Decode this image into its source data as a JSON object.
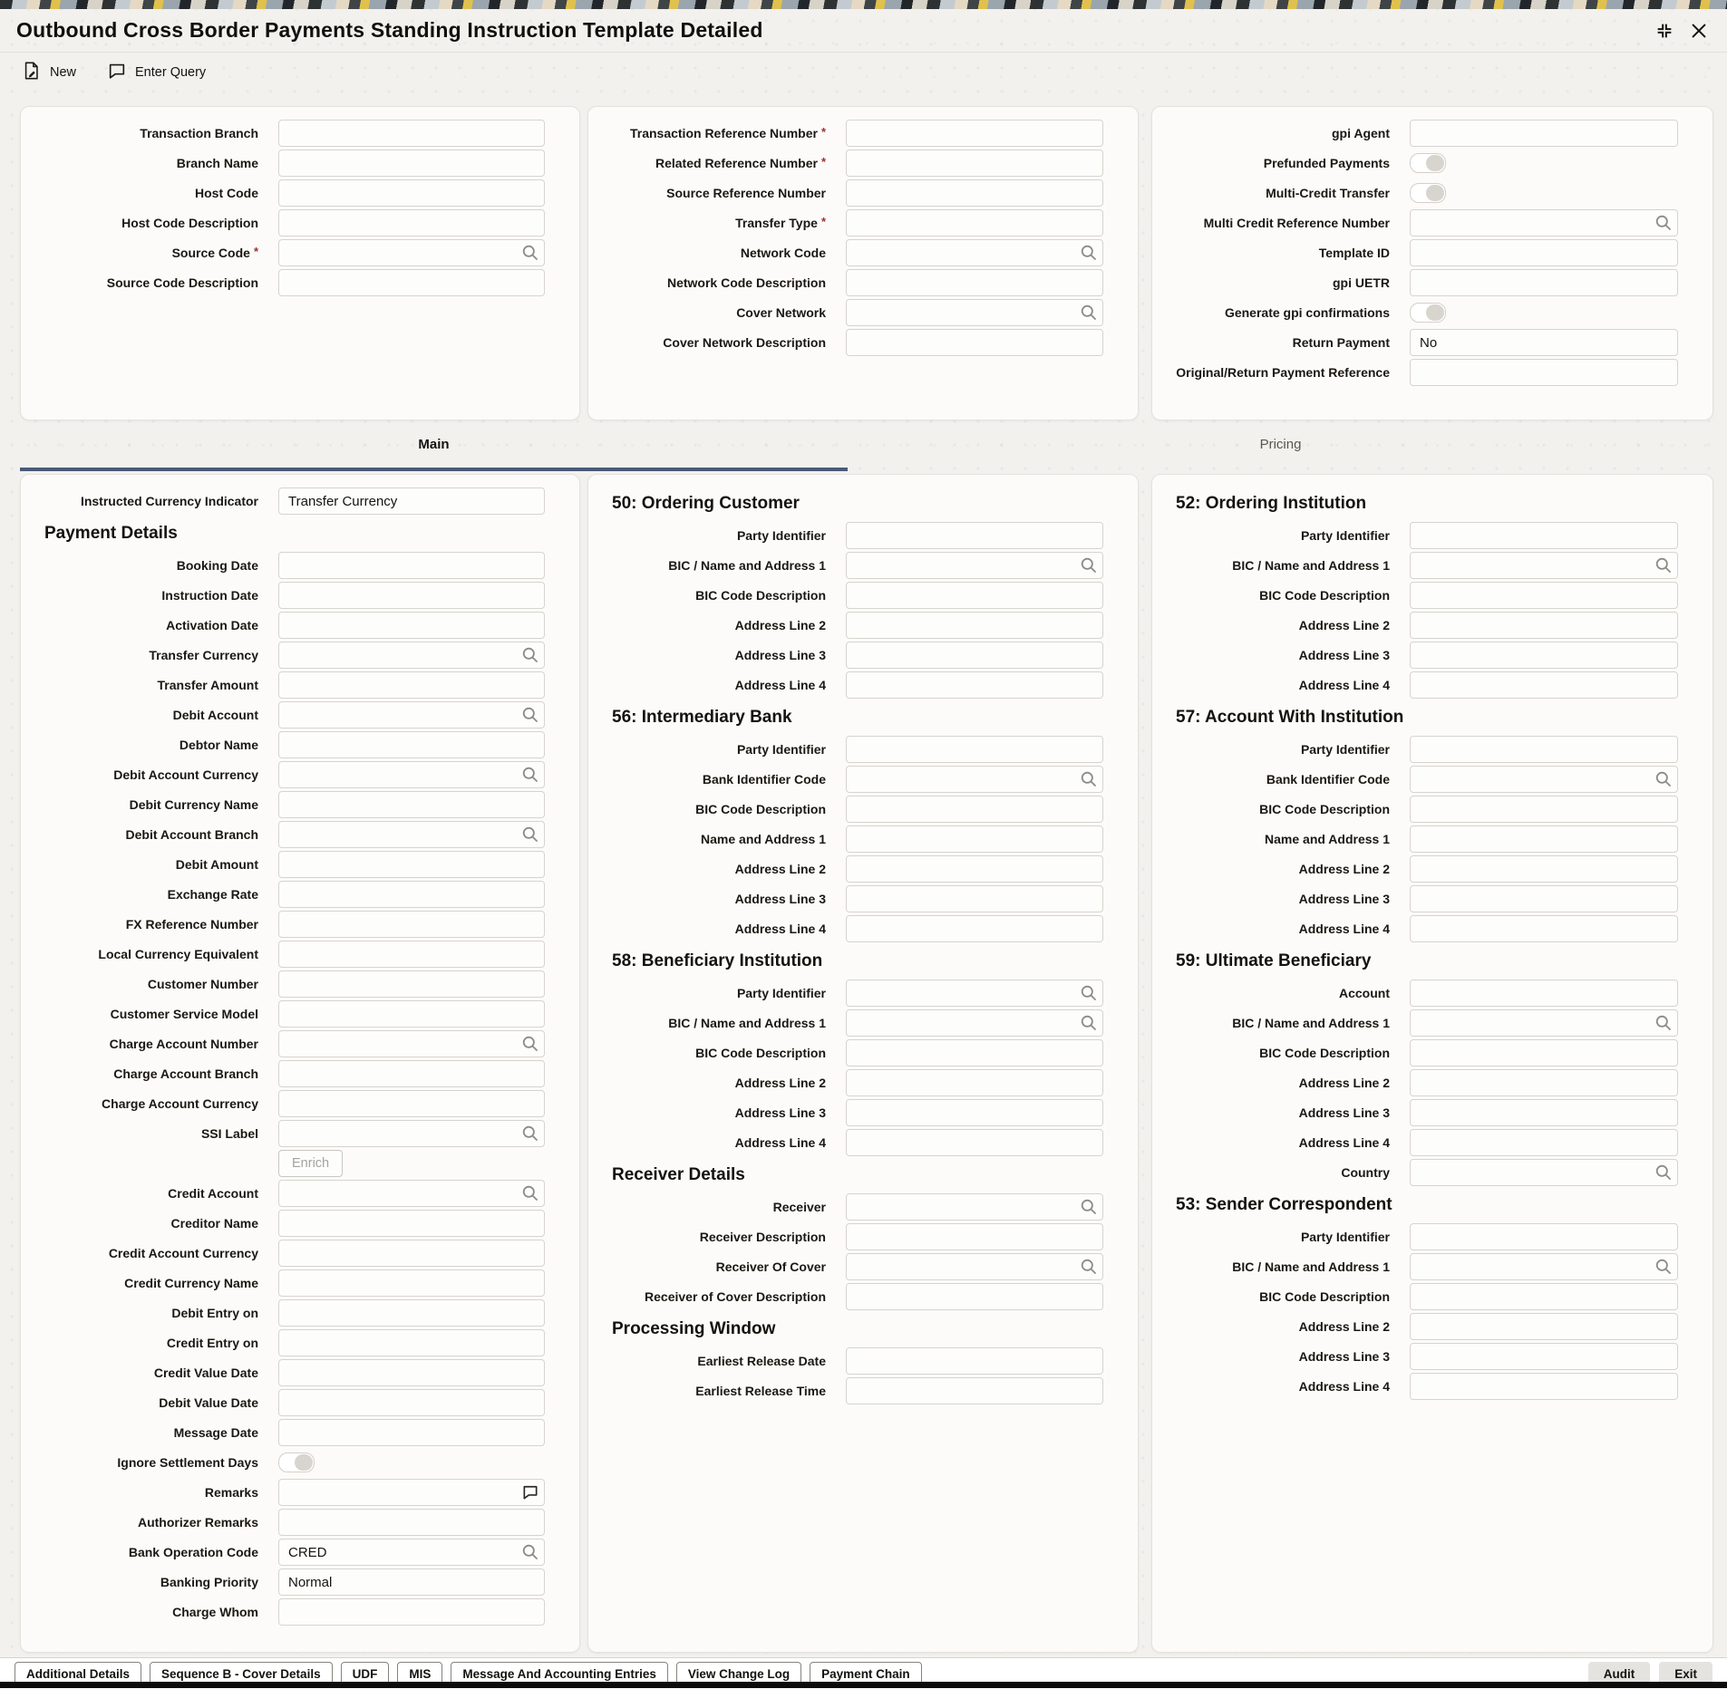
{
  "window": {
    "title": "Outbound Cross Border Payments Standing Instruction Template Detailed"
  },
  "toolbar": {
    "new_label": "New",
    "enter_query_label": "Enter Query"
  },
  "tabs": {
    "main": "Main",
    "pricing": "Pricing"
  },
  "misc": {
    "required_marker": "*"
  },
  "panels": {
    "top_left": {
      "fields": [
        {
          "label": "Transaction Branch"
        },
        {
          "label": "Branch Name"
        },
        {
          "label": "Host Code"
        },
        {
          "label": "Host Code Description"
        },
        {
          "label": "Source Code",
          "required": true,
          "type": "search"
        },
        {
          "label": "Source Code Description"
        }
      ]
    },
    "top_middle": {
      "fields": [
        {
          "label": "Transaction Reference Number",
          "required": true
        },
        {
          "label": "Related Reference Number",
          "required": true
        },
        {
          "label": "Source Reference Number"
        },
        {
          "label": "Transfer Type",
          "required": true
        },
        {
          "label": "Network Code",
          "type": "search"
        },
        {
          "label": "Network Code Description"
        },
        {
          "label": "Cover Network",
          "type": "search"
        },
        {
          "label": "Cover Network Description"
        }
      ]
    },
    "top_right": {
      "fields": [
        {
          "label": "gpi Agent"
        },
        {
          "label": "Prefunded Payments",
          "type": "toggle"
        },
        {
          "label": "Multi-Credit Transfer",
          "type": "toggle"
        },
        {
          "label": "Multi Credit Reference Number",
          "type": "search"
        },
        {
          "label": "Template ID"
        },
        {
          "label": "gpi UETR"
        },
        {
          "label": "Generate gpi confirmations",
          "type": "toggle"
        },
        {
          "label": "Return Payment",
          "value": "No"
        },
        {
          "label": "Original/Return Payment Reference"
        }
      ]
    },
    "main_left": {
      "fields": [
        {
          "label": "Instructed Currency Indicator",
          "value": "Transfer Currency"
        },
        {
          "type": "heading",
          "text": "Payment Details"
        },
        {
          "label": "Booking Date"
        },
        {
          "label": "Instruction Date"
        },
        {
          "label": "Activation Date"
        },
        {
          "label": "Transfer Currency",
          "type": "search"
        },
        {
          "label": "Transfer Amount"
        },
        {
          "label": "Debit Account",
          "type": "search"
        },
        {
          "label": "Debtor Name"
        },
        {
          "label": "Debit Account Currency",
          "type": "search"
        },
        {
          "label": "Debit Currency Name"
        },
        {
          "label": "Debit Account Branch",
          "type": "search"
        },
        {
          "label": "Debit Amount"
        },
        {
          "label": "Exchange Rate"
        },
        {
          "label": "FX Reference Number"
        },
        {
          "label": "Local Currency Equivalent"
        },
        {
          "label": "Customer Number"
        },
        {
          "label": "Customer Service Model"
        },
        {
          "label": "Charge Account Number",
          "type": "search"
        },
        {
          "label": "Charge Account Branch"
        },
        {
          "label": "Charge Account Currency"
        },
        {
          "label": "SSI Label",
          "type": "search"
        },
        {
          "type": "button",
          "text": "Enrich"
        },
        {
          "label": "Credit Account",
          "type": "search"
        },
        {
          "label": "Creditor Name"
        },
        {
          "label": "Credit Account Currency"
        },
        {
          "label": "Credit Currency Name"
        },
        {
          "label": "Debit Entry on"
        },
        {
          "label": "Credit Entry on"
        },
        {
          "label": "Credit Value Date"
        },
        {
          "label": "Debit Value Date"
        },
        {
          "label": "Message Date"
        },
        {
          "label": "Ignore Settlement Days",
          "type": "toggle"
        },
        {
          "label": "Remarks",
          "type": "remarks"
        },
        {
          "label": "Authorizer Remarks"
        },
        {
          "label": "Bank Operation Code",
          "type": "search",
          "value": "CRED"
        },
        {
          "label": "Banking Priority",
          "value": "Normal"
        },
        {
          "label": "Charge Whom"
        }
      ]
    },
    "main_middle": {
      "fields": [
        {
          "type": "heading",
          "text": "50: Ordering Customer"
        },
        {
          "label": "Party Identifier"
        },
        {
          "label": "BIC / Name and Address 1",
          "type": "search"
        },
        {
          "label": "BIC Code Description"
        },
        {
          "label": "Address Line 2"
        },
        {
          "label": "Address Line 3"
        },
        {
          "label": "Address Line 4"
        },
        {
          "type": "heading",
          "text": "56: Intermediary Bank"
        },
        {
          "label": "Party Identifier"
        },
        {
          "label": "Bank Identifier Code",
          "type": "search"
        },
        {
          "label": "BIC Code Description"
        },
        {
          "label": "Name and Address 1"
        },
        {
          "label": "Address Line 2"
        },
        {
          "label": "Address Line 3"
        },
        {
          "label": "Address Line 4"
        },
        {
          "type": "heading",
          "text": "58: Beneficiary Institution"
        },
        {
          "label": "Party Identifier",
          "type": "search"
        },
        {
          "label": "BIC / Name and Address 1",
          "type": "search"
        },
        {
          "label": "BIC Code Description"
        },
        {
          "label": "Address Line 2"
        },
        {
          "label": "Address Line 3"
        },
        {
          "label": "Address Line 4"
        },
        {
          "type": "heading",
          "text": "Receiver Details"
        },
        {
          "label": "Receiver",
          "type": "search"
        },
        {
          "label": "Receiver Description"
        },
        {
          "label": "Receiver Of Cover",
          "type": "search"
        },
        {
          "label": "Receiver of Cover Description"
        },
        {
          "type": "heading",
          "text": "Processing Window"
        },
        {
          "label": "Earliest Release Date"
        },
        {
          "label": "Earliest Release Time"
        }
      ]
    },
    "main_right": {
      "fields": [
        {
          "type": "heading",
          "text": "52: Ordering Institution"
        },
        {
          "label": "Party Identifier"
        },
        {
          "label": "BIC / Name and Address 1",
          "type": "search"
        },
        {
          "label": "BIC Code Description"
        },
        {
          "label": "Address Line 2"
        },
        {
          "label": "Address Line 3"
        },
        {
          "label": "Address Line 4"
        },
        {
          "type": "heading",
          "text": "57: Account With Institution"
        },
        {
          "label": "Party Identifier"
        },
        {
          "label": "Bank Identifier Code",
          "type": "search"
        },
        {
          "label": "BIC Code Description"
        },
        {
          "label": "Name and Address 1"
        },
        {
          "label": "Address Line 2"
        },
        {
          "label": "Address Line 3"
        },
        {
          "label": "Address Line 4"
        },
        {
          "type": "heading",
          "text": "59: Ultimate Beneficiary"
        },
        {
          "label": "Account"
        },
        {
          "label": "BIC / Name and Address 1",
          "type": "search"
        },
        {
          "label": "BIC Code Description"
        },
        {
          "label": "Address Line 2"
        },
        {
          "label": "Address Line 3"
        },
        {
          "label": "Address Line 4"
        },
        {
          "label": "Country",
          "type": "search"
        },
        {
          "type": "heading",
          "text": "53: Sender Correspondent"
        },
        {
          "label": "Party Identifier"
        },
        {
          "label": "BIC / Name and Address 1",
          "type": "search"
        },
        {
          "label": "BIC Code Description"
        },
        {
          "label": "Address Line 2"
        },
        {
          "label": "Address Line 3"
        },
        {
          "label": "Address Line 4"
        }
      ]
    }
  },
  "footer": {
    "left_buttons": [
      "Additional Details",
      "Sequence B - Cover Details",
      "UDF",
      "MIS",
      "Message And Accounting Entries",
      "View Change Log",
      "Payment Chain"
    ],
    "right_buttons": [
      "Audit",
      "Exit"
    ]
  }
}
